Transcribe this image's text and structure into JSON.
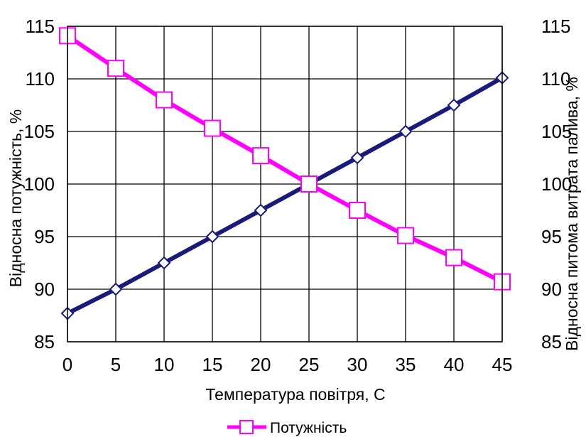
{
  "chart_data": {
    "type": "line",
    "x": [
      0,
      5,
      10,
      15,
      20,
      25,
      30,
      35,
      40,
      45
    ],
    "xlabel": "Температура повітря, С",
    "ylabel_left": "Відносна потужність, %",
    "ylabel_right": "Відносна питома витрата палива, %",
    "xlim": [
      0,
      45
    ],
    "ylim_left": [
      85,
      115
    ],
    "ylim_right": [
      85,
      115
    ],
    "x_ticks": [
      0,
      5,
      10,
      15,
      20,
      25,
      30,
      35,
      40,
      45
    ],
    "y_ticks": [
      85,
      90,
      95,
      100,
      105,
      110,
      115
    ],
    "grid": true,
    "legend_position": "bottom",
    "series": [
      {
        "name": "Потужність",
        "axis": "left",
        "marker": "square",
        "color": "#ff00ff",
        "values": [
          114.1,
          111.0,
          108.0,
          105.3,
          102.7,
          100.0,
          97.5,
          95.1,
          93.0,
          90.7
        ]
      },
      {
        "name": "",
        "axis": "right",
        "marker": "diamond",
        "color": "#1a1a7a",
        "values": [
          87.7,
          90.0,
          92.5,
          95.0,
          97.5,
          100.0,
          102.5,
          105.0,
          107.5,
          110.1
        ]
      }
    ]
  }
}
